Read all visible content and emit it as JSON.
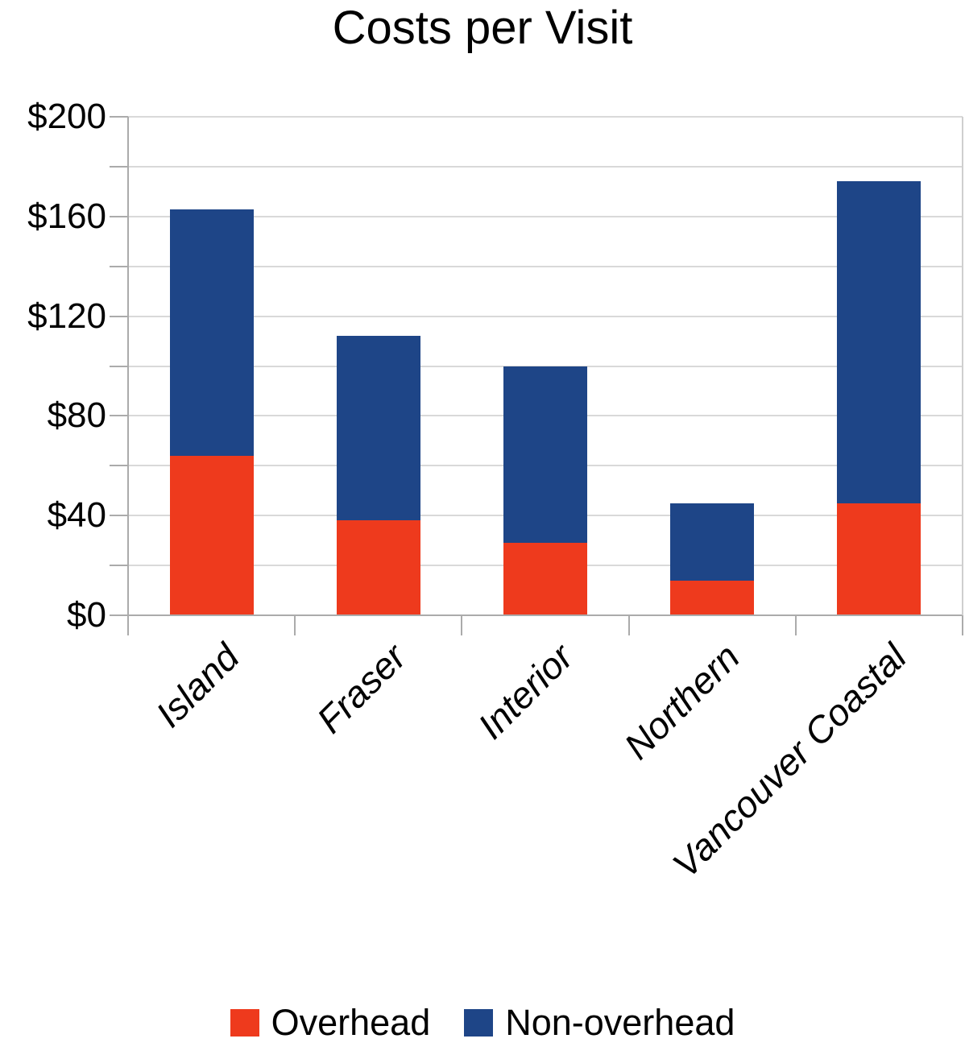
{
  "title": "Costs per Visit",
  "chart_data": {
    "type": "bar",
    "stacked": true,
    "title": "Costs per Visit",
    "categories": [
      "Island",
      "Fraser",
      "Interior",
      "Northern",
      "Vancouver Coastal"
    ],
    "series": [
      {
        "name": "Overhead",
        "color": "#ee3a1d",
        "values": [
          64,
          38,
          29,
          14,
          45
        ]
      },
      {
        "name": "Non-overhead",
        "color": "#1e4587",
        "values": [
          99,
          74,
          71,
          31,
          129
        ]
      }
    ],
    "stacked_totals": [
      163,
      112,
      100,
      45,
      174
    ],
    "xlabel": "",
    "ylabel": "",
    "ylim": [
      0,
      200
    ],
    "ytick_major_interval": 40,
    "ytick_minor_interval": 20,
    "ytick_labels": [
      "$0",
      "$40",
      "$80",
      "$120",
      "$160",
      "$200"
    ],
    "grid": true,
    "legend_position": "bottom"
  },
  "colors": {
    "overhead": "#ee3a1d",
    "non_overhead": "#1e4587",
    "gridline": "#d9d9d9",
    "axis": "#ababab",
    "text": "#000000",
    "background": "#ffffff"
  },
  "legend": {
    "items": [
      {
        "label": "Overhead",
        "color": "#ee3a1d"
      },
      {
        "label": "Non-overhead",
        "color": "#1e4587"
      }
    ]
  }
}
